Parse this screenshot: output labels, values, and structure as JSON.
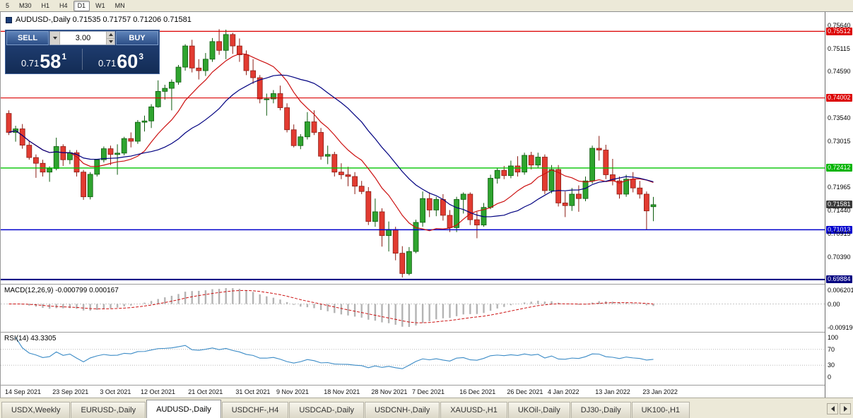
{
  "toolbar": {
    "timeframes": [
      {
        "label": "5",
        "active": false
      },
      {
        "label": "M30",
        "active": false
      },
      {
        "label": "H1",
        "active": false
      },
      {
        "label": "H4",
        "active": false
      },
      {
        "label": "D1",
        "active": true
      },
      {
        "label": "W1",
        "active": false
      },
      {
        "label": "MN",
        "active": false
      }
    ]
  },
  "chart": {
    "info": "AUDUSD-,Daily 0.71535 0.71757 0.71206 0.71581",
    "trade": {
      "sell_label": "SELL",
      "buy_label": "BUY",
      "volume": "3.00",
      "sell_price": {
        "base": "0.71",
        "big": "58",
        "sup": "1"
      },
      "buy_price": {
        "base": "0.71",
        "big": "60",
        "sup": "3"
      }
    },
    "price_axis": [
      {
        "text": "0.75640",
        "price": 0.7564,
        "style": "plain"
      },
      {
        "text": "0.75512",
        "price": 0.75512,
        "style": "red"
      },
      {
        "text": "0.75115",
        "price": 0.75115,
        "style": "plain"
      },
      {
        "text": "0.74590",
        "price": 0.7459,
        "style": "plain"
      },
      {
        "text": "0.74002",
        "price": 0.74002,
        "style": "red"
      },
      {
        "text": "0.73540",
        "price": 0.7354,
        "style": "plain"
      },
      {
        "text": "0.73015",
        "price": 0.73015,
        "style": "plain"
      },
      {
        "text": "0.72412",
        "price": 0.72412,
        "style": "green"
      },
      {
        "text": "0.71965",
        "price": 0.71965,
        "style": "plain"
      },
      {
        "text": "0.71581",
        "price": 0.71581,
        "style": "dark"
      },
      {
        "text": "0.71440",
        "price": 0.7144,
        "style": "plain"
      },
      {
        "text": "0.71013",
        "price": 0.71013,
        "style": "blue"
      },
      {
        "text": "0.70915",
        "price": 0.70915,
        "style": "plain"
      },
      {
        "text": "0.70390",
        "price": 0.7039,
        "style": "plain"
      },
      {
        "text": "0.69884",
        "price": 0.69884,
        "style": "navy"
      }
    ],
    "levels": [
      {
        "price": 0.75512,
        "color": "#dc0000",
        "width": 1.2
      },
      {
        "price": 0.74002,
        "color": "#dc0000",
        "width": 1.2
      },
      {
        "price": 0.72412,
        "color": "#00c400",
        "width": 1.4
      },
      {
        "price": 0.71013,
        "color": "#0000cc",
        "width": 1.4
      },
      {
        "price": 0.69884,
        "color": "#000080",
        "width": 2
      }
    ]
  },
  "macd": {
    "label": "MACD(12,26,9) -0.000799 0.000167",
    "axis": {
      "top": "0.006201",
      "zero": "0.00",
      "bottom": "-0.009190"
    }
  },
  "rsi": {
    "label": "RSI(14) 43.3305",
    "axis": [
      "100",
      "70",
      "30",
      "0"
    ],
    "levels": [
      70,
      30
    ]
  },
  "tabs": {
    "items": [
      {
        "label": "USDX,Weekly",
        "active": false
      },
      {
        "label": "EURUSD-,Daily",
        "active": false
      },
      {
        "label": "AUDUSD-,Daily",
        "active": true
      },
      {
        "label": "USDCHF-,H4",
        "active": false
      },
      {
        "label": "USDCAD-,Daily",
        "active": false
      },
      {
        "label": "USDCNH-,Daily",
        "active": false
      },
      {
        "label": "XAUUSD-,H1",
        "active": false
      },
      {
        "label": "UKOil-,Daily",
        "active": false
      },
      {
        "label": "DJ30-,Daily",
        "active": false
      },
      {
        "label": "UK100-,H1",
        "active": false
      }
    ]
  },
  "chart_data": {
    "type": "candlestick",
    "symbol": "AUDUSD-",
    "period": "Daily",
    "title": "AUDUSD-,Daily",
    "current": {
      "open": 0.71535,
      "high": 0.71757,
      "low": 0.71206,
      "close": 0.71581
    },
    "ylim": [
      0.6977,
      0.7595
    ],
    "ohlc": [
      [
        0.7365,
        0.7372,
        0.7316,
        0.7322
      ],
      [
        0.7322,
        0.7337,
        0.7301,
        0.733
      ],
      [
        0.733,
        0.7341,
        0.7285,
        0.7293
      ],
      [
        0.7293,
        0.7302,
        0.726,
        0.7265
      ],
      [
        0.7265,
        0.7272,
        0.7219,
        0.7252
      ],
      [
        0.7252,
        0.726,
        0.7222,
        0.7232
      ],
      [
        0.7232,
        0.7245,
        0.721,
        0.724
      ],
      [
        0.724,
        0.731,
        0.7236,
        0.729
      ],
      [
        0.729,
        0.7295,
        0.7246,
        0.726
      ],
      [
        0.726,
        0.7282,
        0.725,
        0.7276
      ],
      [
        0.7276,
        0.7282,
        0.7222,
        0.7232
      ],
      [
        0.7232,
        0.7237,
        0.7169,
        0.7176
      ],
      [
        0.7176,
        0.7232,
        0.717,
        0.7227
      ],
      [
        0.7227,
        0.7262,
        0.7222,
        0.726
      ],
      [
        0.726,
        0.729,
        0.7254,
        0.7285
      ],
      [
        0.7285,
        0.7292,
        0.7248,
        0.7272
      ],
      [
        0.7272,
        0.7295,
        0.7226,
        0.7275
      ],
      [
        0.7275,
        0.7312,
        0.727,
        0.7308
      ],
      [
        0.7308,
        0.7322,
        0.7288,
        0.7302
      ],
      [
        0.7302,
        0.735,
        0.7296,
        0.7345
      ],
      [
        0.7345,
        0.736,
        0.7324,
        0.7348
      ],
      [
        0.7348,
        0.7386,
        0.7332,
        0.738
      ],
      [
        0.738,
        0.744,
        0.7378,
        0.7415
      ],
      [
        0.7415,
        0.743,
        0.7396,
        0.7422
      ],
      [
        0.7422,
        0.7442,
        0.7372,
        0.7436
      ],
      [
        0.7436,
        0.7475,
        0.743,
        0.747
      ],
      [
        0.747,
        0.7522,
        0.7462,
        0.7518
      ],
      [
        0.7518,
        0.7532,
        0.7458,
        0.7468
      ],
      [
        0.7468,
        0.7488,
        0.7442,
        0.7462
      ],
      [
        0.7462,
        0.7502,
        0.745,
        0.7488
      ],
      [
        0.7488,
        0.7536,
        0.7482,
        0.7528
      ],
      [
        0.7528,
        0.7556,
        0.7498,
        0.7508
      ],
      [
        0.7508,
        0.7555,
        0.7488,
        0.7544
      ],
      [
        0.7544,
        0.7548,
        0.75,
        0.7518
      ],
      [
        0.7518,
        0.7535,
        0.7482,
        0.7498
      ],
      [
        0.7498,
        0.7508,
        0.7452,
        0.7462
      ],
      [
        0.7462,
        0.7488,
        0.7432,
        0.7446
      ],
      [
        0.7446,
        0.7452,
        0.7388,
        0.7398
      ],
      [
        0.7398,
        0.741,
        0.736,
        0.7398
      ],
      [
        0.7398,
        0.7418,
        0.7388,
        0.741
      ],
      [
        0.741,
        0.7428,
        0.7372,
        0.7378
      ],
      [
        0.7378,
        0.7388,
        0.7322,
        0.7328
      ],
      [
        0.7328,
        0.734,
        0.7288,
        0.7292
      ],
      [
        0.7292,
        0.7318,
        0.7284,
        0.7312
      ],
      [
        0.7312,
        0.7368,
        0.7306,
        0.7346
      ],
      [
        0.7346,
        0.7372,
        0.7316,
        0.7322
      ],
      [
        0.7322,
        0.7332,
        0.726,
        0.7268
      ],
      [
        0.7268,
        0.7292,
        0.725,
        0.7272
      ],
      [
        0.7272,
        0.7278,
        0.7222,
        0.7232
      ],
      [
        0.7232,
        0.7252,
        0.7216,
        0.7226
      ],
      [
        0.7226,
        0.7244,
        0.72,
        0.7222
      ],
      [
        0.7222,
        0.7232,
        0.7182,
        0.72
      ],
      [
        0.72,
        0.7212,
        0.7182,
        0.7188
      ],
      [
        0.7188,
        0.7198,
        0.7112,
        0.712
      ],
      [
        0.712,
        0.7172,
        0.7108,
        0.7142
      ],
      [
        0.7142,
        0.715,
        0.7063,
        0.7088
      ],
      [
        0.7088,
        0.712,
        0.7052,
        0.7102
      ],
      [
        0.7102,
        0.7108,
        0.7032,
        0.7048
      ],
      [
        0.7048,
        0.7064,
        0.6993,
        0.7002
      ],
      [
        0.7002,
        0.7062,
        0.6998,
        0.7052
      ],
      [
        0.7052,
        0.7124,
        0.7048,
        0.7118
      ],
      [
        0.7118,
        0.7188,
        0.7108,
        0.7172
      ],
      [
        0.7172,
        0.7186,
        0.713,
        0.7146
      ],
      [
        0.7146,
        0.7176,
        0.7132,
        0.717
      ],
      [
        0.717,
        0.7182,
        0.7122,
        0.7134
      ],
      [
        0.7134,
        0.7146,
        0.7096,
        0.7106
      ],
      [
        0.7106,
        0.7176,
        0.7096,
        0.717
      ],
      [
        0.717,
        0.7186,
        0.7138,
        0.7182
      ],
      [
        0.7182,
        0.7186,
        0.7112,
        0.7124
      ],
      [
        0.7124,
        0.7142,
        0.7082,
        0.7112
      ],
      [
        0.7112,
        0.7162,
        0.7108,
        0.7152
      ],
      [
        0.7152,
        0.7226,
        0.7148,
        0.7218
      ],
      [
        0.7218,
        0.7242,
        0.7206,
        0.7236
      ],
      [
        0.7236,
        0.7246,
        0.7216,
        0.7224
      ],
      [
        0.7224,
        0.7258,
        0.7218,
        0.7246
      ],
      [
        0.7246,
        0.7268,
        0.7222,
        0.7232
      ],
      [
        0.7232,
        0.7276,
        0.7226,
        0.727
      ],
      [
        0.727,
        0.7278,
        0.7238,
        0.7248
      ],
      [
        0.7248,
        0.7276,
        0.7242,
        0.7266
      ],
      [
        0.7266,
        0.7272,
        0.7182,
        0.719
      ],
      [
        0.719,
        0.7248,
        0.7184,
        0.7238
      ],
      [
        0.7238,
        0.7248,
        0.7154,
        0.7162
      ],
      [
        0.7162,
        0.7188,
        0.713,
        0.7156
      ],
      [
        0.7156,
        0.7196,
        0.7144,
        0.7182
      ],
      [
        0.7182,
        0.7202,
        0.7142,
        0.7172
      ],
      [
        0.7172,
        0.7222,
        0.7166,
        0.7212
      ],
      [
        0.7212,
        0.7292,
        0.7206,
        0.7286
      ],
      [
        0.7286,
        0.7314,
        0.7258,
        0.7282
      ],
      [
        0.7282,
        0.7294,
        0.7216,
        0.7226
      ],
      [
        0.7226,
        0.7262,
        0.7202,
        0.7212
      ],
      [
        0.7212,
        0.7222,
        0.7172,
        0.7182
      ],
      [
        0.7182,
        0.7226,
        0.7176,
        0.7216
      ],
      [
        0.7216,
        0.7232,
        0.7186,
        0.7196
      ],
      [
        0.7196,
        0.7212,
        0.7172,
        0.7182
      ],
      [
        0.7182,
        0.7188,
        0.7101,
        0.7144
      ],
      [
        0.71535,
        0.71757,
        0.71206,
        0.71581
      ]
    ],
    "date_ticks": [
      {
        "label": "14 Sep 2021",
        "bar": 0
      },
      {
        "label": "23 Sep 2021",
        "bar": 7
      },
      {
        "label": "3 Oct 2021",
        "bar": 14
      },
      {
        "label": "12 Oct 2021",
        "bar": 20
      },
      {
        "label": "21 Oct 2021",
        "bar": 27
      },
      {
        "label": "31 Oct 2021",
        "bar": 34
      },
      {
        "label": "9 Nov 2021",
        "bar": 40
      },
      {
        "label": "18 Nov 2021",
        "bar": 47
      },
      {
        "label": "28 Nov 2021",
        "bar": 54
      },
      {
        "label": "7 Dec 2021",
        "bar": 60
      },
      {
        "label": "16 Dec 2021",
        "bar": 67
      },
      {
        "label": "26 Dec 2021",
        "bar": 74
      },
      {
        "label": "4 Jan 2022",
        "bar": 80
      },
      {
        "label": "13 Jan 2022",
        "bar": 87
      },
      {
        "label": "23 Jan 2022",
        "bar": 94
      }
    ],
    "overlays": [
      {
        "name": "ma-fast-line",
        "type": "sma",
        "period": 10,
        "color": "#cc1111"
      },
      {
        "name": "ma-slow-line",
        "type": "sma",
        "period": 21,
        "color": "#000080"
      }
    ],
    "indicators": [
      {
        "type": "macd",
        "params": [
          12,
          26,
          9
        ]
      },
      {
        "type": "rsi",
        "params": [
          14
        ]
      }
    ],
    "colors": {
      "up_fill": "#2fa42f",
      "up_stroke": "#0f5c0f",
      "down_fill": "#e23b31",
      "down_stroke": "#8c1d14",
      "macd_hist": "#b4b4b4",
      "macd_signal": "#cc1111",
      "rsi_line": "#3b8bc6"
    }
  }
}
